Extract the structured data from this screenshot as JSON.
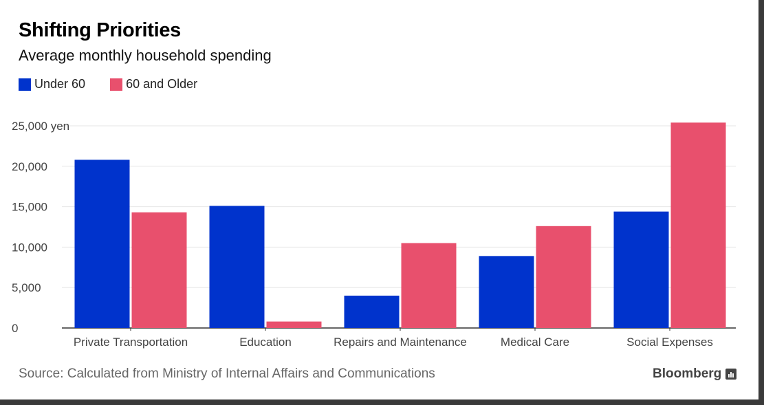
{
  "title": "Shifting Priorities",
  "subtitle": "Average monthly household spending",
  "source": "Source: Calculated from Ministry of Internal Affairs and Communications",
  "brand": "Bloomberg",
  "colors": {
    "under60": "#0033cc",
    "over60": "#e8506d"
  },
  "chart_data": {
    "type": "bar",
    "categories": [
      "Private Transportation",
      "Education",
      "Repairs and Maintenance",
      "Medical Care",
      "Social Expenses"
    ],
    "series": [
      {
        "name": "Under 60",
        "values": [
          20800,
          15100,
          4000,
          8900,
          14400
        ]
      },
      {
        "name": "60 and Older",
        "values": [
          14300,
          800,
          10500,
          12600,
          25400
        ]
      }
    ],
    "yticks": [
      0,
      5000,
      10000,
      15000,
      20000,
      25000
    ],
    "ytick_labels": [
      "0",
      "5,000",
      "10,000",
      "15,000",
      "20,000",
      "25,000 yen"
    ],
    "ylim": [
      0,
      25000
    ],
    "title": "Shifting Priorities",
    "xlabel": "",
    "ylabel": "yen",
    "legend": "top-left",
    "grid": true
  }
}
